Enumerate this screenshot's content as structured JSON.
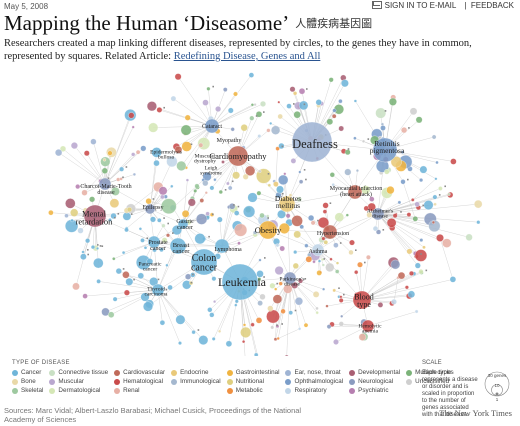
{
  "header": {
    "date": "May 5, 2008",
    "sign_in": "SIGN IN TO E-MAIL",
    "feedback": "FEEDBACK"
  },
  "title": "Mapping the Human ‘Diseasome’",
  "title_cn": "人體疾病基因圖",
  "subtitle": {
    "text": "Researchers created a map linking different diseases, represented by circles, to the genes they have in common, represented by squares. Related Article:",
    "link": "Redefining Disease, Genes and All"
  },
  "colors": {
    "cancer": "#6fb5d9",
    "bone": "#e9d9a8",
    "skeletal": "#9ec9a0",
    "connective": "#c9e0c4",
    "muscular": "#b9a7cf",
    "dermatological": "#d5e7b6",
    "cardiovascular": "#c06a5a",
    "hematological": "#c94b4b",
    "renal": "#e7b0a5",
    "endocrine": "#e9c97a",
    "immunological": "#a5b8cf",
    "gastrointestinal": "#f0b441",
    "nutritional": "#dfcf7f",
    "metabolic": "#f09040",
    "ear_nose_throat": "#9fb4d4",
    "ophthalmological": "#7a9dc9",
    "respiratory": "#c2d6e8",
    "developmental": "#a95f73",
    "neurological": "#8a9bbf",
    "psychiatric": "#b67fb0",
    "multiple": "#7bb379",
    "unclassified": "#cfcfcf",
    "edge": "#c4c4c4"
  },
  "legend": {
    "title": "TYPE OF DISEASE",
    "items": [
      {
        "label": "Cancer",
        "color": "#6fb5d9"
      },
      {
        "label": "Connective tissue",
        "color": "#c9e0c4"
      },
      {
        "label": "Cardiovascular",
        "color": "#c06a5a"
      },
      {
        "label": "Endocrine",
        "color": "#e9c97a"
      },
      {
        "label": "Gastrointestinal",
        "color": "#f0b441"
      },
      {
        "label": "Ear, nose, throat",
        "color": "#9fb4d4"
      },
      {
        "label": "Developmental",
        "color": "#a95f73"
      },
      {
        "label": "Multiple types",
        "color": "#7bb379"
      },
      {
        "label": "Bone",
        "color": "#e9d9a8"
      },
      {
        "label": "Muscular",
        "color": "#b9a7cf"
      },
      {
        "label": "Hematological",
        "color": "#c94b4b"
      },
      {
        "label": "Immunological",
        "color": "#a5b8cf"
      },
      {
        "label": "Nutritional",
        "color": "#dfcf7f"
      },
      {
        "label": "Ophthalmological",
        "color": "#7a9dc9"
      },
      {
        "label": "Neurological",
        "color": "#8a9bbf"
      },
      {
        "label": "Unclassified",
        "color": "#cfcfcf"
      },
      {
        "label": "Skeletal",
        "color": "#9ec9a0"
      },
      {
        "label": "Dermatological",
        "color": "#d5e7b6"
      },
      {
        "label": "Renal",
        "color": "#e7b0a5"
      },
      {
        "label": "",
        "color": ""
      },
      {
        "label": "Metabolic",
        "color": "#f09040"
      },
      {
        "label": "Respiratory",
        "color": "#c2d6e8"
      },
      {
        "label": "Psychiatric",
        "color": "#b67fb0"
      },
      {
        "label": "",
        "color": ""
      }
    ]
  },
  "scale": {
    "title": "SCALE",
    "description": "Each circle represents a disease or disorder and is scaled in proportion to the number of genes associated with that disease.",
    "big": "30 genes",
    "mid": "10",
    "small": "1"
  },
  "footer": {
    "sources": "Sources: Marc Vidal; Albert-Laszlo Barabasi; Michael Cusick, Proceedings of the National Academy of Sciences",
    "credit": "The New York Times"
  },
  "labels": [
    {
      "text": "Deafness",
      "size": 12.5
    },
    {
      "text": "Retinitis pigmentosa",
      "size": 7.5
    },
    {
      "text": "Cardiomyopathy",
      "size": 8.5
    },
    {
      "text": "Cataract",
      "size": 6
    },
    {
      "text": "Myopathy",
      "size": 6
    },
    {
      "text": "Epidermolysis bullosa",
      "size": 5.5
    },
    {
      "text": "Muscular dystrophy",
      "size": 5.5
    },
    {
      "text": "Leigh syndrome",
      "size": 5.5
    },
    {
      "text": "Charcot-Marie-Tooth disease",
      "size": 6
    },
    {
      "text": "Diabetes mellitus",
      "size": 7.5
    },
    {
      "text": "Myocardial infarction (heart attack)",
      "size": 6
    },
    {
      "text": "Alzheimer's disease",
      "size": 5.5
    },
    {
      "text": "Mental retardation",
      "size": 8.5
    },
    {
      "text": "Epilepsy",
      "size": 6
    },
    {
      "text": "Gastric cancer",
      "size": 6
    },
    {
      "text": "Obesity",
      "size": 8.5
    },
    {
      "text": "Hypertension",
      "size": 6
    },
    {
      "text": "Prostate cancer",
      "size": 6
    },
    {
      "text": "Breast cancer",
      "size": 6.5
    },
    {
      "text": "Colon cancer",
      "size": 10
    },
    {
      "text": "Lymphoma",
      "size": 6
    },
    {
      "text": "Asthma",
      "size": 6
    },
    {
      "text": "Pancreatic cancer",
      "size": 5.5
    },
    {
      "text": "Leukemia",
      "size": 12
    },
    {
      "text": "Thyroid carcinoma",
      "size": 5.5
    },
    {
      "text": "Parkinson's disease",
      "size": 5.5
    },
    {
      "text": "Blood type",
      "size": 8
    },
    {
      "text": "Hemolytic anemia",
      "size": 5.5
    }
  ]
}
